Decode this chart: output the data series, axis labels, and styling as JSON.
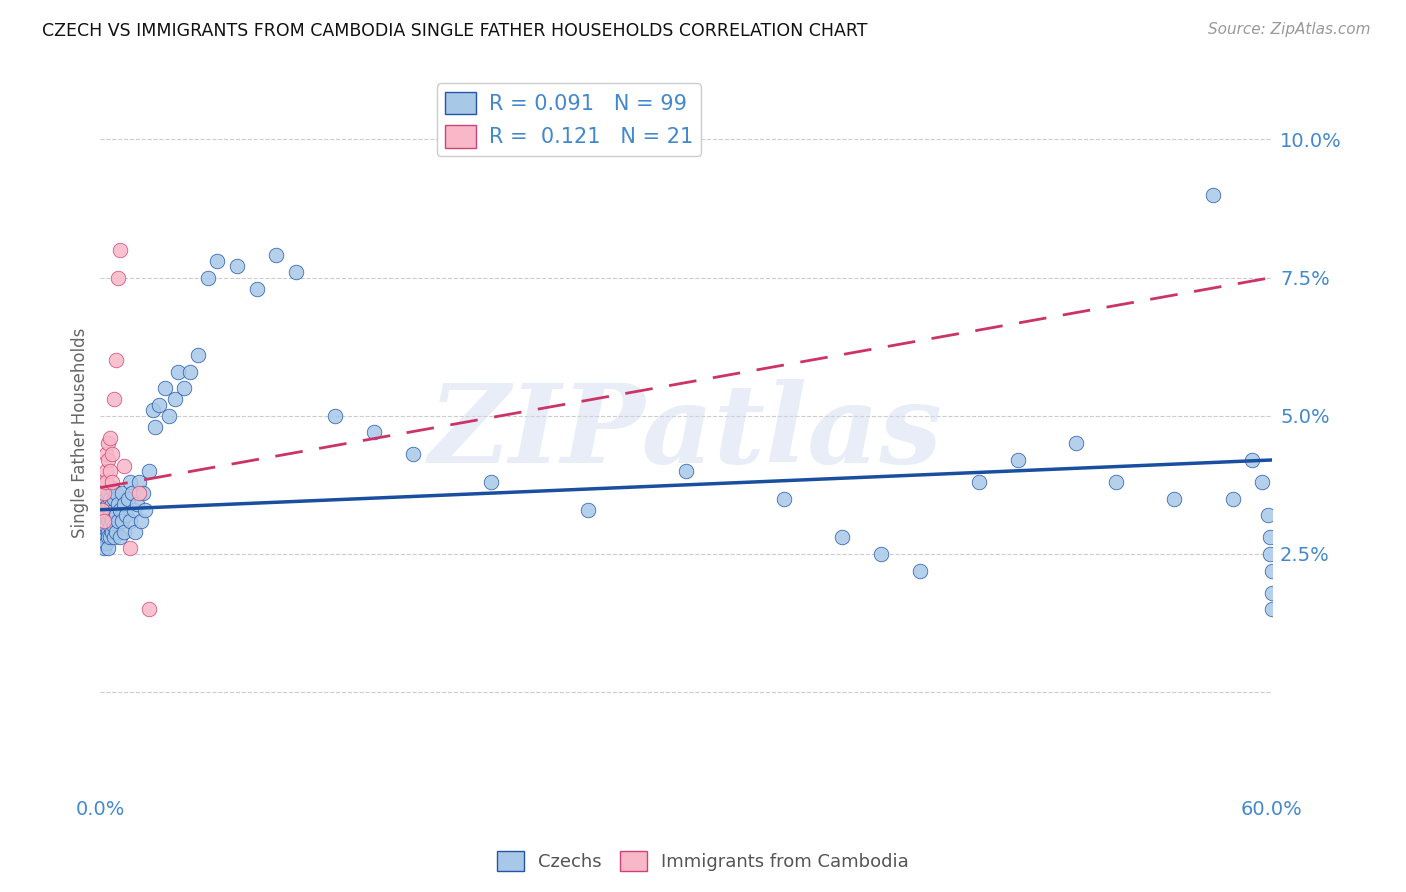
{
  "title": "CZECH VS IMMIGRANTS FROM CAMBODIA SINGLE FATHER HOUSEHOLDS CORRELATION CHART",
  "source": "Source: ZipAtlas.com",
  "ylabel": "Single Father Households",
  "watermark": "ZIPatlas",
  "legend_r1": "R = 0.091",
  "legend_n1": "N = 99",
  "legend_r2": "R =  0.121",
  "legend_n2": "N = 21",
  "czechs_color": "#a8c8e8",
  "czechs_edge": "#2255aa",
  "cambodia_color": "#f8b8c8",
  "cambodia_edge": "#cc4477",
  "czech_line_color": "#1a4fa0",
  "cambodia_line_color": "#cc3366",
  "xlim": [
    0.0,
    0.6
  ],
  "ylim": [
    -0.018,
    0.112
  ],
  "ytick_vals": [
    0.0,
    0.025,
    0.05,
    0.075,
    0.1
  ],
  "ytick_labels": [
    "",
    "2.5%",
    "5.0%",
    "7.5%",
    "10.0%"
  ],
  "xtick_show": [
    "0.0%",
    "60.0%"
  ],
  "grid_color": "#cccccc",
  "tick_color": "#4488cc",
  "background": "#ffffff",
  "czech_line_x": [
    0.0,
    0.6
  ],
  "czech_line_y": [
    0.033,
    0.042
  ],
  "cambodia_line_x": [
    0.0,
    0.6
  ],
  "cambodia_line_y": [
    0.037,
    0.075
  ],
  "czechs_x": [
    0.001,
    0.001,
    0.001,
    0.001,
    0.002,
    0.002,
    0.002,
    0.002,
    0.002,
    0.003,
    0.003,
    0.003,
    0.003,
    0.003,
    0.003,
    0.004,
    0.004,
    0.004,
    0.004,
    0.004,
    0.004,
    0.005,
    0.005,
    0.005,
    0.005,
    0.005,
    0.006,
    0.006,
    0.006,
    0.006,
    0.007,
    0.007,
    0.007,
    0.007,
    0.008,
    0.008,
    0.008,
    0.009,
    0.009,
    0.01,
    0.01,
    0.011,
    0.011,
    0.012,
    0.012,
    0.013,
    0.014,
    0.015,
    0.015,
    0.016,
    0.017,
    0.018,
    0.019,
    0.02,
    0.021,
    0.022,
    0.023,
    0.025,
    0.027,
    0.028,
    0.03,
    0.033,
    0.035,
    0.038,
    0.04,
    0.043,
    0.046,
    0.05,
    0.055,
    0.06,
    0.07,
    0.08,
    0.09,
    0.1,
    0.12,
    0.14,
    0.16,
    0.2,
    0.25,
    0.3,
    0.35,
    0.38,
    0.4,
    0.42,
    0.45,
    0.47,
    0.5,
    0.52,
    0.55,
    0.57,
    0.58,
    0.59,
    0.595,
    0.598,
    0.599,
    0.599,
    0.6,
    0.6,
    0.6
  ],
  "czechs_y": [
    0.03,
    0.027,
    0.033,
    0.028,
    0.031,
    0.026,
    0.034,
    0.029,
    0.032,
    0.028,
    0.033,
    0.03,
    0.027,
    0.035,
    0.032,
    0.029,
    0.034,
    0.028,
    0.031,
    0.026,
    0.036,
    0.033,
    0.03,
    0.028,
    0.035,
    0.032,
    0.029,
    0.034,
    0.031,
    0.037,
    0.033,
    0.03,
    0.035,
    0.028,
    0.032,
    0.036,
    0.029,
    0.034,
    0.031,
    0.033,
    0.028,
    0.036,
    0.031,
    0.034,
    0.029,
    0.032,
    0.035,
    0.038,
    0.031,
    0.036,
    0.033,
    0.029,
    0.034,
    0.038,
    0.031,
    0.036,
    0.033,
    0.04,
    0.051,
    0.048,
    0.052,
    0.055,
    0.05,
    0.053,
    0.058,
    0.055,
    0.058,
    0.061,
    0.075,
    0.078,
    0.077,
    0.073,
    0.079,
    0.076,
    0.05,
    0.047,
    0.043,
    0.038,
    0.033,
    0.04,
    0.035,
    0.028,
    0.025,
    0.022,
    0.038,
    0.042,
    0.045,
    0.038,
    0.035,
    0.09,
    0.035,
    0.042,
    0.038,
    0.032,
    0.028,
    0.025,
    0.022,
    0.018,
    0.015
  ],
  "cambodia_x": [
    0.001,
    0.001,
    0.002,
    0.002,
    0.003,
    0.003,
    0.003,
    0.004,
    0.004,
    0.005,
    0.005,
    0.006,
    0.006,
    0.007,
    0.008,
    0.009,
    0.01,
    0.012,
    0.015,
    0.02,
    0.025
  ],
  "cambodia_y": [
    0.033,
    0.038,
    0.031,
    0.036,
    0.04,
    0.043,
    0.038,
    0.045,
    0.042,
    0.04,
    0.046,
    0.038,
    0.043,
    0.053,
    0.06,
    0.075,
    0.08,
    0.041,
    0.026,
    0.036,
    0.015
  ]
}
